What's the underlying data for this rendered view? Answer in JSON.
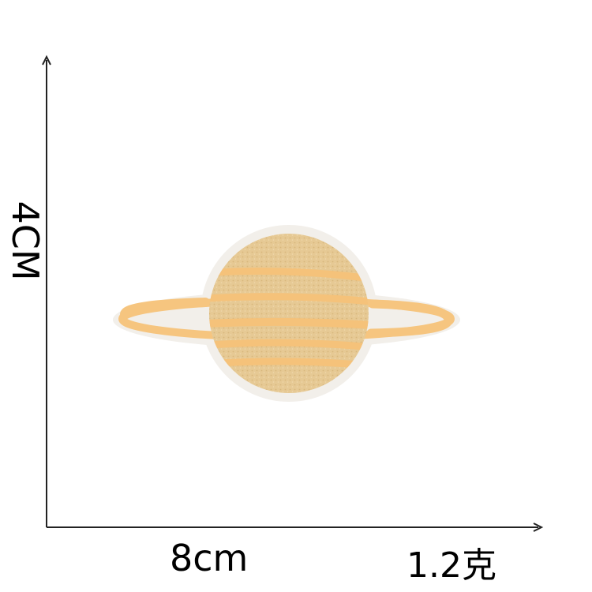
{
  "dimensions": {
    "height_label": "4CM",
    "width_label": "8cm",
    "weight_label": "1.2克"
  },
  "colors": {
    "patch_border": "#f4f1ec",
    "planet_fill": "#e8cc98",
    "stripe": "#f5c27a",
    "ring": "#f6c57f",
    "axis": "#222222"
  },
  "icon": "saturn-planet-embroidered-patch"
}
